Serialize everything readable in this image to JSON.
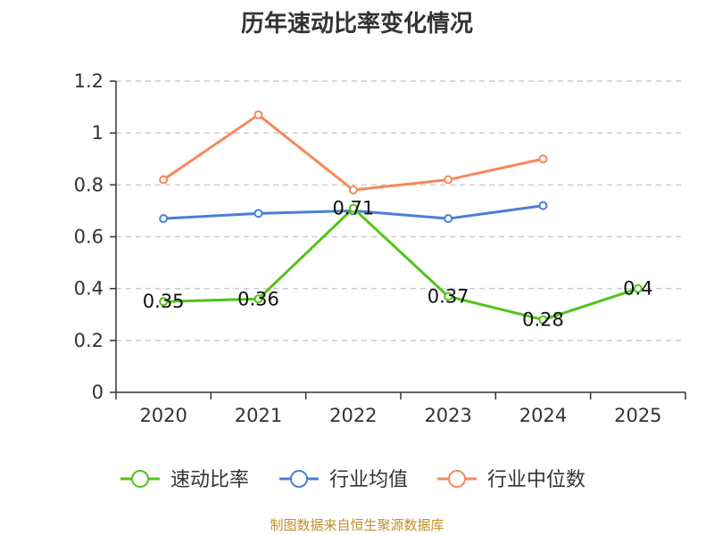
{
  "chart_data": {
    "type": "line",
    "title": "历年速动比率变化情况",
    "categories": [
      "2020",
      "2021",
      "2022",
      "2023",
      "2024",
      "2025"
    ],
    "ylim": [
      0,
      1.2
    ],
    "yticks": [
      "0",
      "0.2",
      "0.4",
      "0.6",
      "0.8",
      "1",
      "1.2"
    ],
    "grid": true,
    "legend_position": "bottom",
    "series": [
      {
        "name": "速动比率",
        "color": "#52c41a",
        "values": [
          0.35,
          0.36,
          0.71,
          0.37,
          0.28,
          0.4
        ],
        "labels": [
          "0.35",
          "0.36",
          "0.71",
          "0.37",
          "0.28",
          "0.4"
        ]
      },
      {
        "name": "行业均值",
        "color": "#4a7fd6",
        "values": [
          0.67,
          0.69,
          0.7,
          0.67,
          0.72,
          null
        ]
      },
      {
        "name": "行业中位数",
        "color": "#f5895a",
        "values": [
          0.82,
          1.07,
          0.78,
          0.82,
          0.9,
          null
        ]
      }
    ]
  },
  "source": "制图数据来自恒生聚源数据库"
}
